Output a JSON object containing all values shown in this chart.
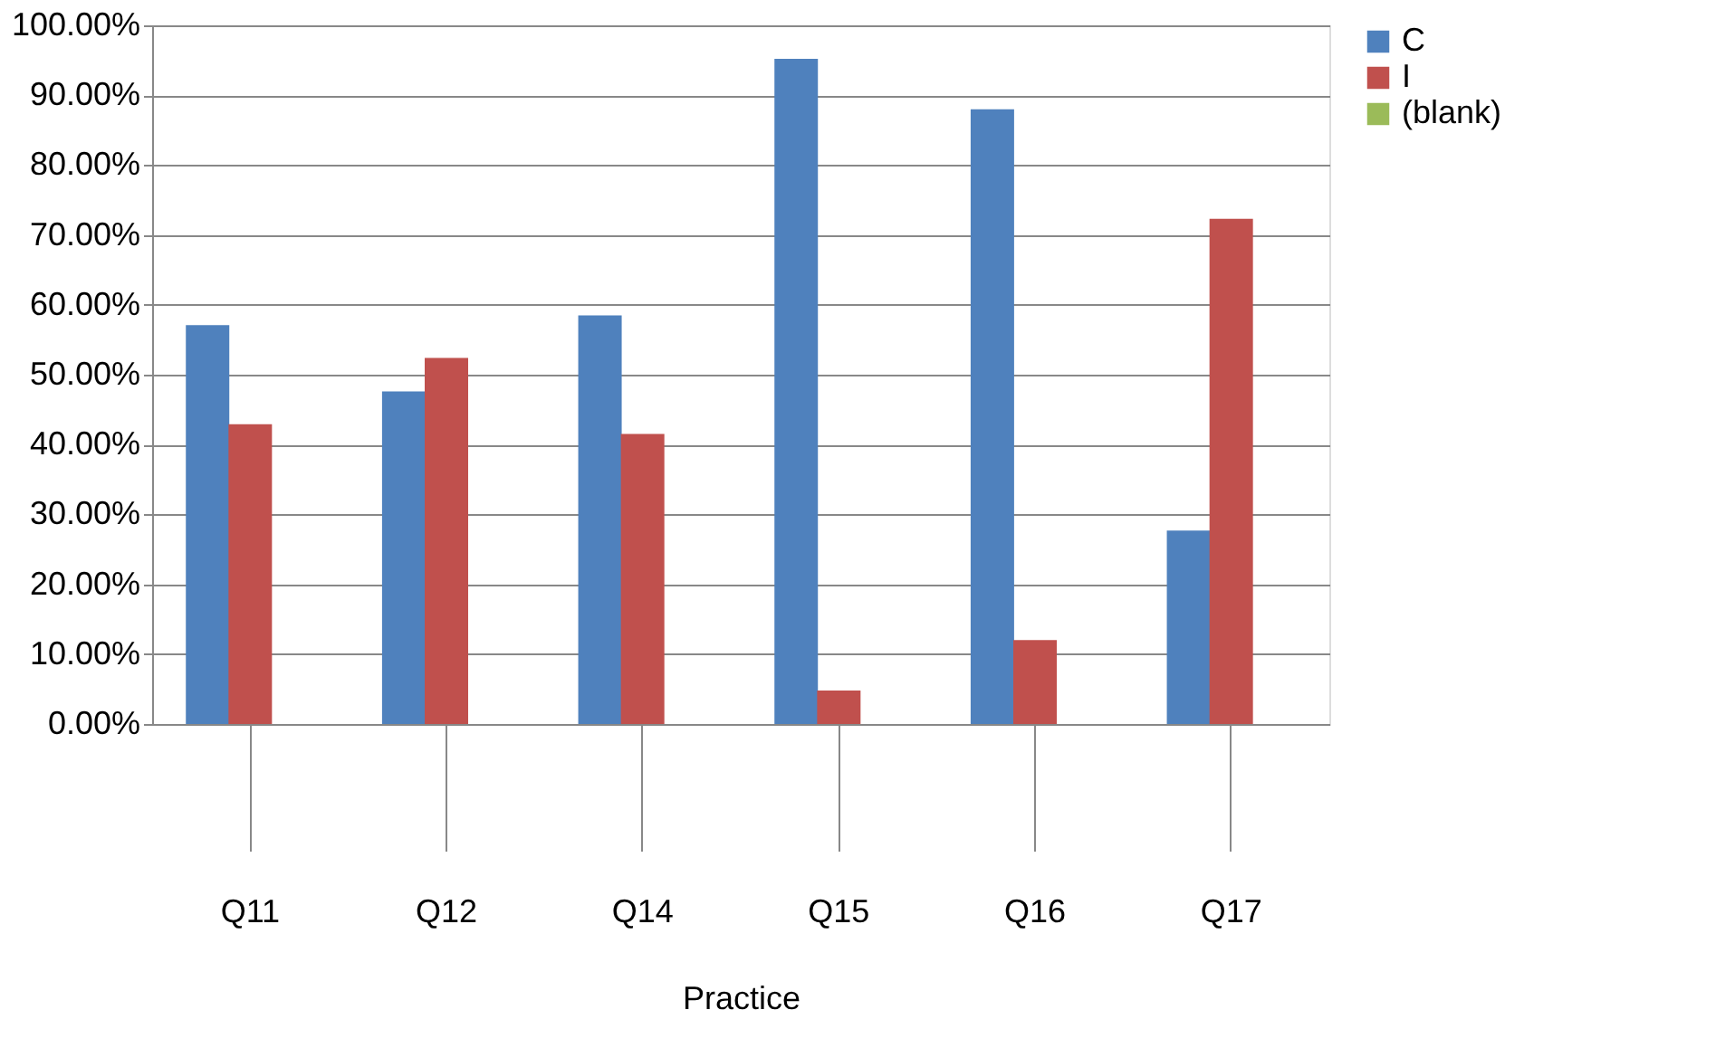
{
  "chart_data": {
    "type": "bar",
    "xlabel": "Practice",
    "categories": [
      "Q11",
      "Q12",
      "Q14",
      "Q15",
      "Q16",
      "Q17"
    ],
    "series": [
      {
        "name": "C",
        "color": "#4f81bd",
        "values": [
          57.1,
          47.6,
          58.5,
          95.2,
          88.0,
          27.7
        ]
      },
      {
        "name": "I",
        "color": "#c0504d",
        "values": [
          42.9,
          52.4,
          41.5,
          4.8,
          12.0,
          72.3
        ]
      },
      {
        "name": "(blank)",
        "color": "#9bbb59",
        "values": [
          null,
          null,
          null,
          null,
          null,
          null
        ]
      }
    ],
    "ylim": [
      0,
      100
    ],
    "yticks": [
      {
        "value": 0,
        "label": "0.00%"
      },
      {
        "value": 10,
        "label": "10.00%"
      },
      {
        "value": 20,
        "label": "20.00%"
      },
      {
        "value": 30,
        "label": "30.00%"
      },
      {
        "value": 40,
        "label": "40.00%"
      },
      {
        "value": 50,
        "label": "50.00%"
      },
      {
        "value": 60,
        "label": "60.00%"
      },
      {
        "value": 70,
        "label": "70.00%"
      },
      {
        "value": 80,
        "label": "80.00%"
      },
      {
        "value": 90,
        "label": "90.00%"
      },
      {
        "value": 100,
        "label": "100.00%"
      }
    ],
    "grid": "y",
    "legend": "right"
  }
}
